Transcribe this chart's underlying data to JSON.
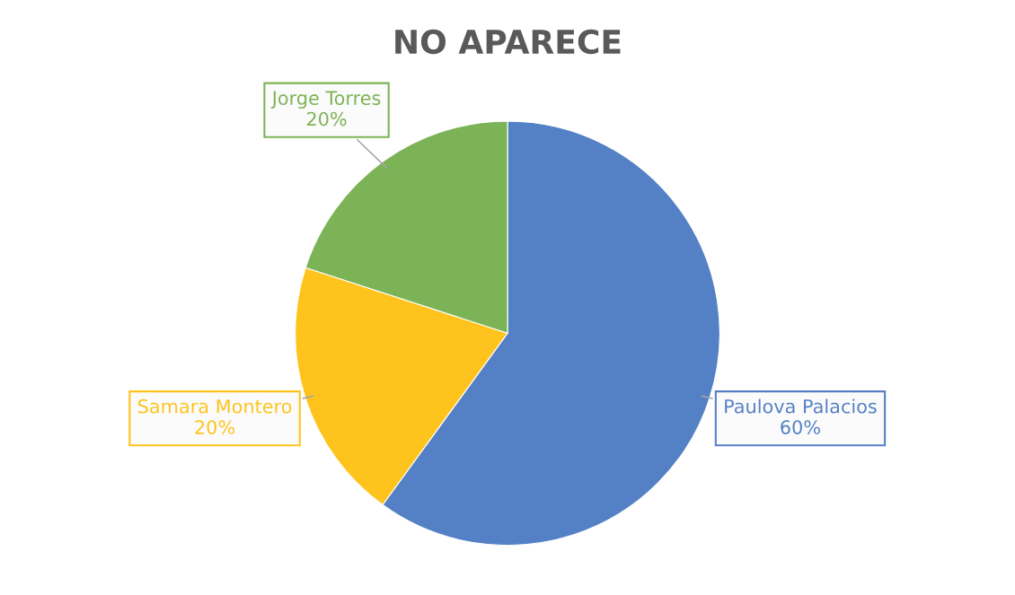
{
  "chart_data": {
    "type": "pie",
    "title": "NO APARECE",
    "categories": [
      "Paulova Palacios",
      "Samara Montero",
      "Jorge Torres"
    ],
    "values": [
      60,
      20,
      20
    ],
    "colors": [
      "#5480c6",
      "#fec31c",
      "#7cb356"
    ],
    "value_labels": [
      "60%",
      "20%",
      "20%"
    ],
    "legend": false
  }
}
